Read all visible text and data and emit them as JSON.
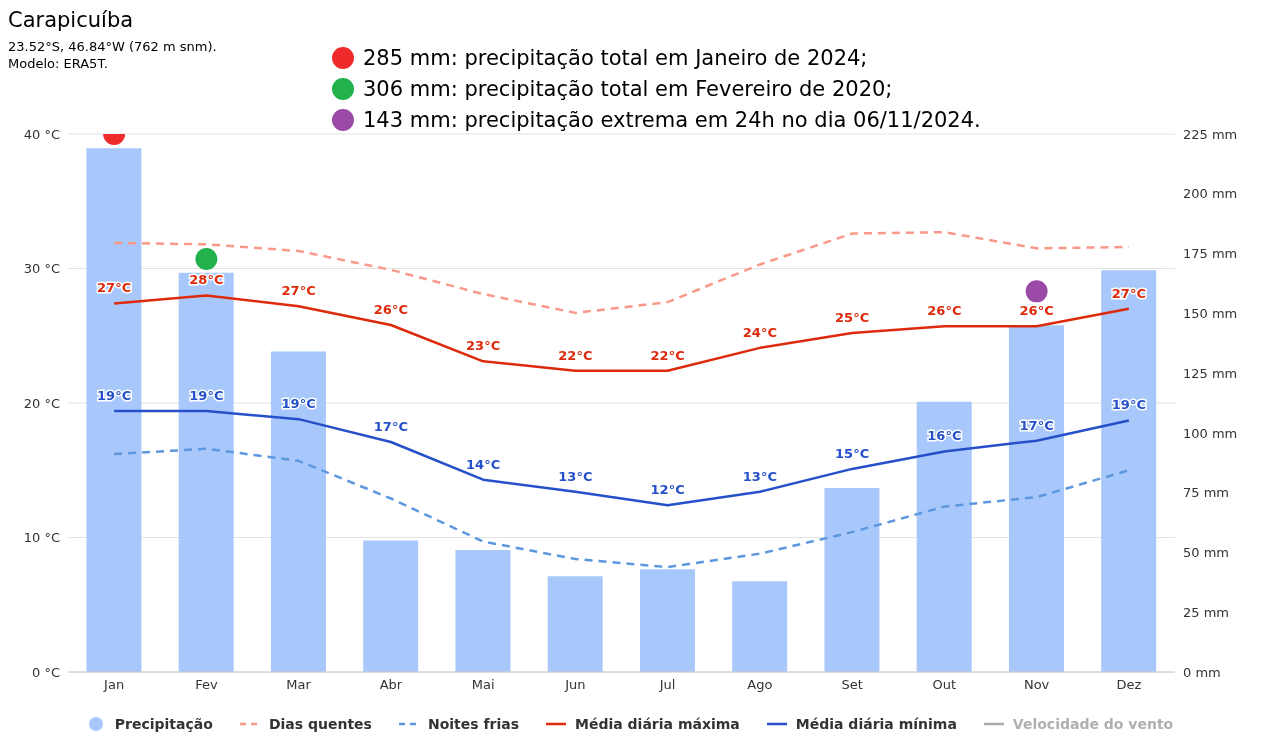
{
  "chart_data": {
    "type": "bar",
    "title": "Carapicuíba",
    "subtitle": "23.52°S, 46.84°W (762 m snm).\nModelo: ERA5T.",
    "categories": [
      "Jan",
      "Fev",
      "Mar",
      "Abr",
      "Mai",
      "Jun",
      "Jul",
      "Ago",
      "Set",
      "Out",
      "Nov",
      "Dez"
    ],
    "series": [
      {
        "name": "Precipitação",
        "axis": "y2",
        "color": "#a8c8fc",
        "values": [
          219,
          167,
          134,
          55,
          51,
          40,
          43,
          38,
          77,
          113,
          145,
          168
        ]
      },
      {
        "name": "Dias quentes",
        "type": "line",
        "line_style": "dashed",
        "color": "#f9998a",
        "values": [
          31.9,
          31.8,
          31.3,
          29.9,
          28.1,
          26.7,
          27.5,
          30.3,
          32.6,
          32.7,
          31.5,
          31.6
        ]
      },
      {
        "name": "Noites frias",
        "type": "line",
        "line_style": "dashed",
        "color": "#5d98de",
        "values": [
          16.2,
          16.6,
          15.7,
          12.9,
          9.7,
          8.4,
          7.8,
          8.8,
          10.4,
          12.3,
          13.0,
          15.0
        ]
      },
      {
        "name": "Média diária máxima",
        "type": "line",
        "line_style": "solid",
        "color": "#dd2a0c",
        "values": [
          27.4,
          28.0,
          27.2,
          25.8,
          23.1,
          22.4,
          22.4,
          24.1,
          25.2,
          25.7,
          25.7,
          27.0
        ],
        "value_labels": [
          "27°C",
          "28°C",
          "27°C",
          "26°C",
          "23°C",
          "22°C",
          "22°C",
          "24°C",
          "25°C",
          "26°C",
          "26°C",
          "27°C"
        ]
      },
      {
        "name": "Média diária mínima",
        "type": "line",
        "line_style": "solid",
        "color": "#2550c9",
        "values": [
          19.4,
          19.4,
          18.8,
          17.1,
          14.3,
          13.4,
          12.4,
          13.4,
          15.1,
          16.4,
          17.2,
          18.7
        ],
        "value_labels": [
          "19°C",
          "19°C",
          "19°C",
          "17°C",
          "14°C",
          "13°C",
          "12°C",
          "13°C",
          "15°C",
          "16°C",
          "17°C",
          "19°C"
        ]
      },
      {
        "name": "Velocidade do vento",
        "type": "line",
        "line_style": "solid",
        "color": "#aaaaaa",
        "values": [
          null,
          null,
          null,
          null,
          null,
          null,
          null,
          null,
          null,
          null,
          null,
          null
        ]
      },
      {
        "type": "scatter",
        "marker": "circle",
        "color": "#ee2a2a",
        "x": [
          "Jan"
        ],
        "values": [
          40
        ]
      },
      {
        "type": "scatter",
        "marker": "circle",
        "color": "#22b14c",
        "x": [
          "Fev"
        ],
        "values": [
          30.7
        ]
      },
      {
        "type": "scatter",
        "marker": "circle",
        "color": "#9b4aa8",
        "x": [
          "Nov"
        ],
        "values": [
          28.3
        ]
      }
    ],
    "annotations": [
      "285 mm: precipitação total em Janeiro de 2024;",
      "306 mm: precipitação total em Fevereiro de 2020;",
      "143 mm: precipitação extrema em 24h no dia 06/11/2024."
    ],
    "ylim": [
      0,
      40
    ],
    "yticks": [
      {
        "value": 0,
        "label": "0 °C"
      },
      {
        "value": 10,
        "label": "10 °C"
      },
      {
        "value": 20,
        "label": "20 °C"
      },
      {
        "value": 30,
        "label": "30 °C"
      },
      {
        "value": 40,
        "label": "40 °C"
      }
    ],
    "y2lim": [
      0,
      225
    ],
    "y2ticks": [
      {
        "value": 0,
        "label": "0 mm"
      },
      {
        "value": 25,
        "label": "25 mm"
      },
      {
        "value": 50,
        "label": "50 mm"
      },
      {
        "value": 75,
        "label": "75 mm"
      },
      {
        "value": 100,
        "label": "100 mm"
      },
      {
        "value": 125,
        "label": "125 mm"
      },
      {
        "value": 150,
        "label": "150 mm"
      },
      {
        "value": 175,
        "label": "175 mm"
      },
      {
        "value": 200,
        "label": "200 mm"
      },
      {
        "value": 225,
        "label": "225 mm"
      }
    ],
    "grid": "y",
    "legend": "bottom"
  }
}
